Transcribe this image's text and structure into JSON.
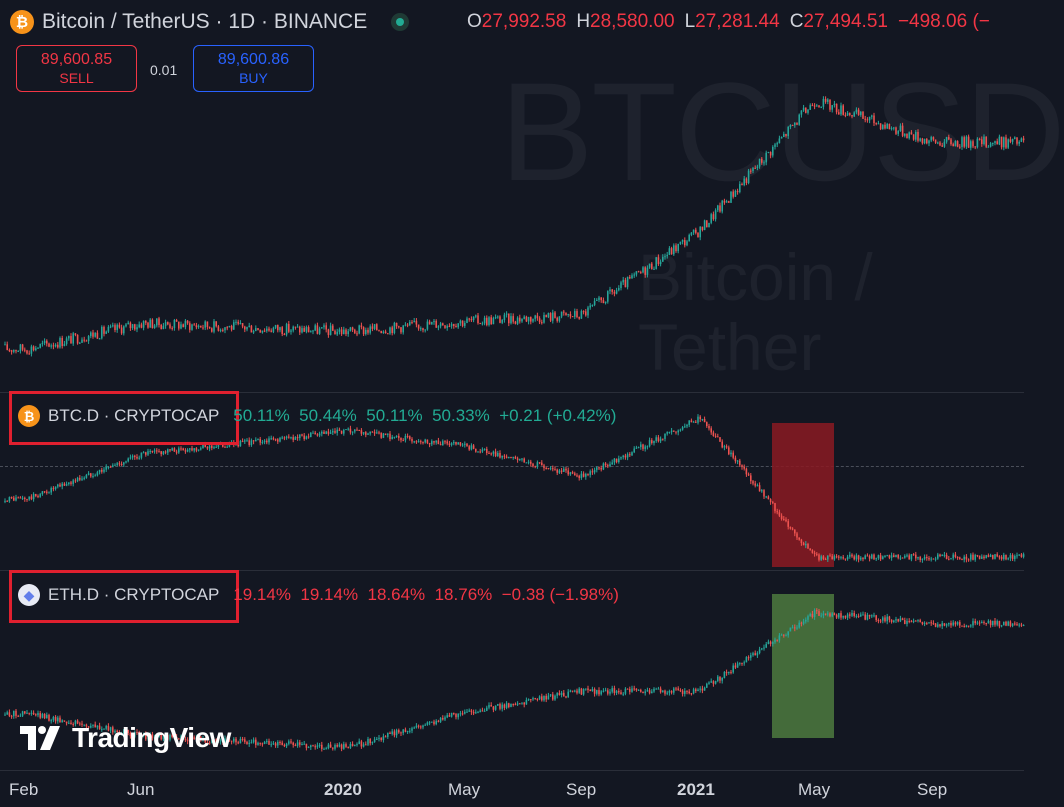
{
  "header": {
    "symbol_title": "Bitcoin / TetherUS · 1D · BINANCE",
    "ohlc": {
      "o_label": "O",
      "o_value": "27,992.58",
      "h_label": "H",
      "h_value": "28,580.00",
      "l_label": "L",
      "l_value": "27,281.44",
      "c_label": "C",
      "c_value": "27,494.51",
      "change": "−498.06 (−"
    }
  },
  "trade": {
    "sell_price": "89,600.85",
    "sell_label": "SELL",
    "spread": "0.01",
    "buy_price": "89,600.86",
    "buy_label": "BUY"
  },
  "watermark": {
    "big": "BTCUSD",
    "small": "Bitcoin / Tether"
  },
  "btcd": {
    "title": "BTC.D · CRYPTOCAP",
    "values": "50.11%  50.44%  50.11%  50.33%  +0.21 (+0.42%)"
  },
  "ethd": {
    "title": "ETH.D · CRYPTOCAP",
    "values": "19.14%  19.14%  18.64%  18.76%  −0.38 (−1.98%)"
  },
  "logo": {
    "text": "TradingView"
  },
  "xaxis": {
    "labels": [
      "Feb",
      "Jun",
      "2020",
      "May",
      "Sep",
      "2021",
      "May",
      "Sep"
    ]
  },
  "colors": {
    "up": "#26a69a",
    "down": "#ef5350",
    "bg": "#131722",
    "red_highlight": "#8b1a22",
    "green_highlight": "#4e7a3e"
  },
  "chart_data": [
    {
      "type": "line",
      "title": "Bitcoin / TetherUS · 1D · BINANCE",
      "x": [
        "Feb",
        "Jun",
        "2020",
        "May",
        "Sep",
        "2021",
        "May",
        "Sep"
      ],
      "series": [
        {
          "values": [
            3500,
            9000,
            7200,
            9300,
            10800,
            29000,
            57000,
            48000
          ]
        }
      ]
    },
    {
      "type": "line",
      "title": "BTC.D · CRYPTOCAP",
      "x": [
        "Feb",
        "Jun",
        "2020",
        "May",
        "Sep",
        "2021",
        "May",
        "Sep"
      ],
      "series": [
        {
          "values": [
            53,
            63,
            68,
            65,
            58,
            71,
            40,
            40
          ]
        }
      ]
    },
    {
      "type": "line",
      "title": "ETH.D · CRYPTOCAP",
      "x": [
        "Feb",
        "Jun",
        "2020",
        "May",
        "Sep",
        "2021",
        "May",
        "Sep"
      ],
      "series": [
        {
          "values": [
            10,
            8,
            7,
            10,
            12,
            12,
            19,
            18
          ]
        }
      ]
    }
  ]
}
